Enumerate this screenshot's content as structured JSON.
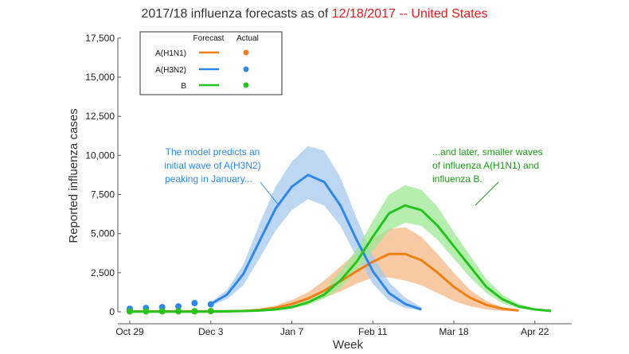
{
  "title": {
    "prefix": "2017/18 influenza forecasts as of ",
    "date": "12/18/2017",
    "suffix": " -- United States",
    "accent_color": "#e41a1c"
  },
  "chart_data": {
    "type": "line",
    "xlabel": "Week",
    "ylabel": "Reported influenza cases",
    "x_ticks": [
      "Oct 29",
      "Dec 3",
      "Jan 7",
      "Feb 11",
      "Mar 18",
      "Apr 22"
    ],
    "x_tick_weeks": [
      0,
      5,
      10,
      15,
      20,
      25
    ],
    "ylim": [
      0,
      17500
    ],
    "y_ticks": [
      0,
      2500,
      5000,
      7500,
      10000,
      12500,
      15000,
      17500
    ],
    "y_tick_labels": [
      "0",
      "2,500",
      "5,000",
      "7,500",
      "10,000",
      "12,500",
      "15,000",
      "17,500"
    ],
    "legend": {
      "placement": "top-left",
      "col_forecast": "Forecast",
      "col_actual": "Actual",
      "entries": [
        "A(H1N1)",
        "A(H3N2)",
        "B"
      ]
    },
    "series": [
      {
        "name": "A(H1N1)",
        "color": "#f07f14",
        "band_color": "#f5b886",
        "forecast": {
          "weeks": [
            0,
            1,
            2,
            3,
            4,
            5,
            6,
            7,
            8,
            9,
            10,
            11,
            12,
            13,
            14,
            15,
            16,
            17,
            18,
            19,
            20,
            21,
            22,
            23,
            24
          ],
          "median": [
            30,
            30,
            30,
            30,
            30,
            30,
            40,
            60,
            120,
            250,
            500,
            850,
            1350,
            1950,
            2600,
            3200,
            3700,
            3700,
            3300,
            2500,
            1600,
            900,
            450,
            200,
            80
          ],
          "lower": [
            20,
            20,
            20,
            20,
            20,
            20,
            30,
            40,
            80,
            150,
            300,
            550,
            900,
            1300,
            1800,
            2200,
            2200,
            2000,
            1700,
            1200,
            700,
            350,
            150,
            60,
            20
          ],
          "upper": [
            40,
            40,
            40,
            40,
            40,
            40,
            60,
            100,
            200,
            400,
            750,
            1250,
            2000,
            2900,
            3800,
            4700,
            5300,
            5400,
            4800,
            3700,
            2500,
            1400,
            700,
            300,
            120
          ]
        },
        "actual": {
          "weeks": [
            0,
            1,
            2,
            3,
            4,
            5
          ],
          "values": [
            30,
            30,
            30,
            30,
            30,
            40
          ]
        }
      },
      {
        "name": "A(H3N2)",
        "color": "#2f88e6",
        "band_color": "#a7c9ee",
        "forecast": {
          "weeks": [
            5,
            6,
            7,
            8,
            9,
            10,
            11,
            12,
            13,
            14,
            15,
            16,
            17,
            18
          ],
          "median": [
            500,
            1100,
            2400,
            4500,
            6600,
            8000,
            8750,
            8300,
            6800,
            4600,
            2600,
            1200,
            500,
            150
          ],
          "lower": [
            400,
            800,
            1700,
            3400,
            5200,
            6500,
            7200,
            6800,
            5500,
            3500,
            1800,
            700,
            250,
            80
          ],
          "upper": [
            600,
            1400,
            3000,
            5600,
            8000,
            9600,
            10600,
            10300,
            8600,
            6000,
            3600,
            1900,
            900,
            300
          ]
        },
        "actual": {
          "weeks": [
            0,
            1,
            2,
            3,
            4,
            5
          ],
          "values": [
            200,
            250,
            300,
            350,
            560,
            480
          ]
        }
      },
      {
        "name": "B",
        "color": "#27c41f",
        "band_color": "#9ee896",
        "forecast": {
          "weeks": [
            0,
            1,
            2,
            3,
            4,
            5,
            6,
            7,
            8,
            9,
            10,
            11,
            12,
            13,
            14,
            15,
            16,
            17,
            18,
            19,
            20,
            21,
            22,
            23,
            24,
            25,
            26
          ],
          "median": [
            10,
            10,
            10,
            10,
            10,
            20,
            30,
            50,
            80,
            150,
            300,
            600,
            1100,
            2000,
            3200,
            4800,
            6300,
            6800,
            6500,
            5500,
            4200,
            2900,
            1600,
            800,
            350,
            150,
            60
          ],
          "lower": [
            5,
            5,
            5,
            5,
            5,
            10,
            20,
            30,
            50,
            100,
            200,
            450,
            850,
            1500,
            2600,
            3900,
            5200,
            5700,
            5500,
            4600,
            3400,
            2200,
            1200,
            550,
            220,
            90,
            30
          ],
          "upper": [
            20,
            20,
            20,
            20,
            20,
            30,
            40,
            80,
            120,
            200,
            400,
            800,
            1400,
            2600,
            4000,
            5800,
            7500,
            8100,
            7800,
            6700,
            5100,
            3600,
            2100,
            1100,
            500,
            220,
            90
          ]
        },
        "actual": {
          "weeks": [
            0,
            1,
            2,
            3,
            4,
            5
          ],
          "values": [
            30,
            30,
            40,
            40,
            40,
            50
          ]
        }
      }
    ],
    "annotations": [
      {
        "lines": [
          "The model predicts an",
          "initial wave of A(H3N2)",
          "peaking in January..."
        ],
        "color": "#2f88e6"
      },
      {
        "lines": [
          "...and later, smaller waves",
          "of influenza A(H1N1) and",
          "influenza B."
        ],
        "color": "#1f9a19"
      }
    ]
  }
}
